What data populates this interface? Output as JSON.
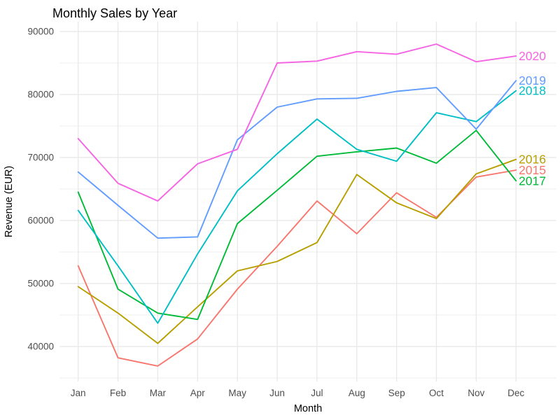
{
  "chart_data": {
    "type": "line",
    "title": "Monthly Sales by Year",
    "xlabel": "Month",
    "ylabel": "Revenue (EUR)",
    "x_categories": [
      "Jan",
      "Feb",
      "Mar",
      "Apr",
      "May",
      "Jun",
      "Jul",
      "Aug",
      "Sep",
      "Oct",
      "Nov",
      "Dec"
    ],
    "y_ticks": [
      40000,
      50000,
      60000,
      70000,
      80000,
      90000
    ],
    "y_minor_ticks": [
      35000,
      45000,
      55000,
      65000,
      75000,
      85000
    ],
    "ylim": [
      34300,
      91500
    ],
    "grid": "major and minor horizontal, major vertical, light grey on white",
    "legend_position": "direct labels at right end of each line",
    "series": [
      {
        "name": "2015",
        "color": "#F8766D",
        "values": [
          52800,
          38200,
          36900,
          41200,
          49100,
          55900,
          63100,
          57900,
          64400,
          60500,
          66900,
          68000
        ]
      },
      {
        "name": "2016",
        "color": "#B79F00",
        "values": [
          49500,
          45300,
          40500,
          46300,
          52000,
          53500,
          56500,
          67300,
          62800,
          60300,
          67400,
          69700
        ]
      },
      {
        "name": "2017",
        "color": "#00BA38",
        "values": [
          64500,
          49100,
          45300,
          44300,
          59500,
          64800,
          70200,
          70900,
          71500,
          69100,
          74300,
          66300
        ]
      },
      {
        "name": "2018",
        "color": "#00BFC4",
        "values": [
          61600,
          52800,
          43700,
          54700,
          64700,
          70600,
          76100,
          71300,
          69400,
          77100,
          75700,
          80600
        ]
      },
      {
        "name": "2019",
        "color": "#619CFF",
        "values": [
          67700,
          62400,
          57200,
          57400,
          72800,
          78000,
          79300,
          79400,
          80500,
          81100,
          74500,
          82200
        ]
      },
      {
        "name": "2020",
        "color": "#F564E2",
        "values": [
          73000,
          65900,
          63100,
          69000,
          71300,
          85000,
          85300,
          86800,
          86400,
          88000,
          85200,
          86100
        ]
      }
    ]
  },
  "colors": {
    "background": "#FFFFFF",
    "grid_major": "#E8E8E8",
    "grid_minor": "#EFEFEF",
    "tick_label": "#4D4D4D",
    "text": "#000000"
  }
}
